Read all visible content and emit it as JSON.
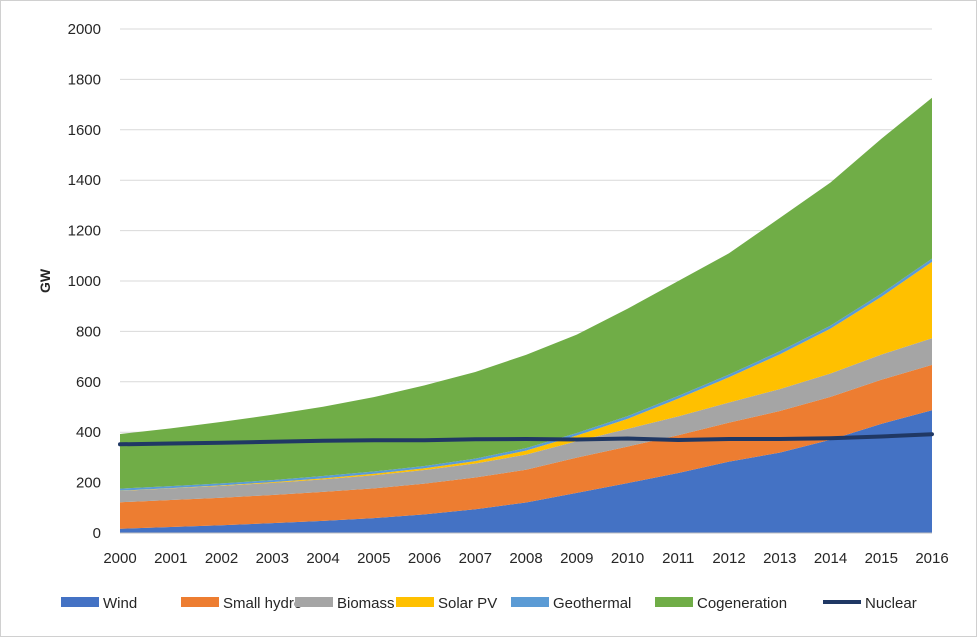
{
  "chart_data": {
    "type": "area",
    "stacked": true,
    "ylabel": "GW",
    "xlabel": "",
    "title": "",
    "ylim": [
      0,
      2000
    ],
    "yticks": [
      "0",
      "200",
      "400",
      "600",
      "800",
      "1000",
      "1200",
      "1400",
      "1600",
      "1800",
      "2000"
    ],
    "x": [
      "2000",
      "2001",
      "2002",
      "2003",
      "2004",
      "2005",
      "2006",
      "2007",
      "2008",
      "2009",
      "2010",
      "2011",
      "2012",
      "2013",
      "2014",
      "2015",
      "2016"
    ],
    "grid": "horizontal",
    "legend_position": "bottom",
    "series": [
      {
        "name": "Wind",
        "color": "#4472c4",
        "values": [
          17,
          24,
          31,
          39,
          48,
          59,
          74,
          94,
          121,
          159,
          198,
          238,
          283,
          319,
          370,
          433,
          487
        ]
      },
      {
        "name": "Small hydro",
        "color": "#ed7d31",
        "values": [
          105,
          107,
          109,
          112,
          115,
          118,
          122,
          126,
          130,
          140,
          145,
          150,
          155,
          165,
          170,
          175,
          180
        ]
      },
      {
        "name": "Biomass",
        "color": "#a5a5a5",
        "values": [
          45,
          46,
          47,
          48,
          50,
          52,
          54,
          56,
          60,
          65,
          70,
          75,
          80,
          87,
          93,
          100,
          106
        ]
      },
      {
        "name": "Solar PV",
        "color": "#ffc000",
        "values": [
          1,
          1,
          2,
          3,
          4,
          6,
          7,
          9,
          16,
          23,
          40,
          70,
          100,
          138,
          178,
          229,
          303
        ]
      },
      {
        "name": "Geothermal",
        "color": "#5b9bd5",
        "values": [
          8,
          8,
          8,
          8,
          9,
          9,
          9,
          10,
          10,
          10,
          11,
          11,
          11,
          12,
          12,
          13,
          13
        ]
      },
      {
        "name": "Cogeneration",
        "color": "#70ad47",
        "values": [
          217,
          229,
          244,
          259,
          275,
          295,
          320,
          344,
          370,
          390,
          426,
          456,
          481,
          529,
          568,
          614,
          638
        ]
      }
    ],
    "line_series": [
      {
        "name": "Nuclear",
        "color": "#203864",
        "values": [
          352,
          355,
          358,
          362,
          366,
          368,
          368,
          372,
          373,
          371,
          375,
          369,
          373,
          373,
          376,
          383,
          392
        ]
      }
    ]
  }
}
